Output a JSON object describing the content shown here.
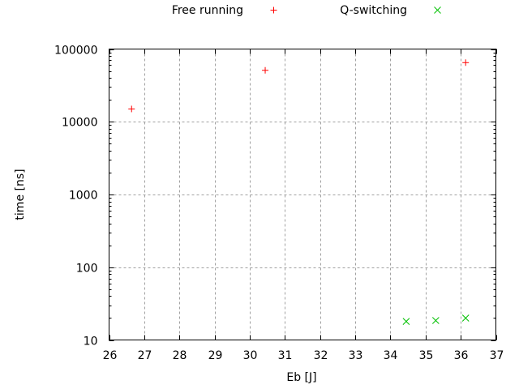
{
  "chart_data": {
    "type": "scatter",
    "xlabel": "Eb [J]",
    "ylabel": "time [ns]",
    "xlim": [
      26,
      37
    ],
    "ylim": [
      10,
      100000
    ],
    "yscale": "log",
    "grid": true,
    "legend_position": "top-outside",
    "x_ticks": [
      "26",
      "27",
      "28",
      "29",
      "30",
      "31",
      "32",
      "33",
      "34",
      "35",
      "36",
      "37"
    ],
    "y_ticks": [
      "10",
      "100",
      "1000",
      "10000",
      "100000"
    ],
    "series": [
      {
        "name": "Free running",
        "marker": "plus",
        "color": "#ff0000",
        "points": [
          [
            26.64,
            15000
          ],
          [
            30.44,
            51000
          ],
          [
            36.14,
            65000
          ]
        ]
      },
      {
        "name": "Q-switching",
        "marker": "cross",
        "color": "#00c000",
        "points": [
          [
            34.45,
            18
          ],
          [
            35.29,
            18.5
          ],
          [
            36.14,
            20
          ]
        ]
      }
    ]
  }
}
